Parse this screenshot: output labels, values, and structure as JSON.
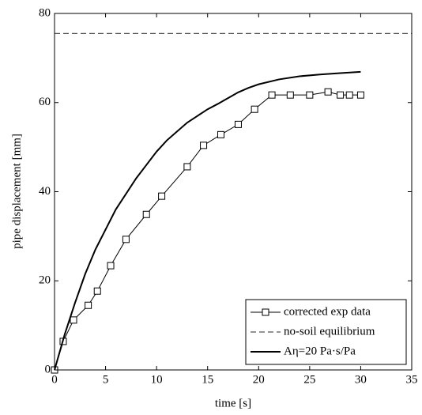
{
  "chart_data": {
    "type": "line",
    "xlabel": "time [s]",
    "ylabel": "pipe displacement [mm]",
    "xlim": [
      0,
      35
    ],
    "ylim": [
      0,
      80
    ],
    "xticks": [
      0,
      5,
      10,
      15,
      20,
      25,
      30,
      35
    ],
    "yticks": [
      0,
      20,
      40,
      60,
      80
    ],
    "legend": "lower right",
    "series": [
      {
        "name": "corrected exp data",
        "color": "#000000",
        "marker": "square",
        "dash": "solid",
        "width": 1,
        "x": [
          0,
          0.85,
          1.86,
          3.3,
          4.2,
          5.5,
          7.0,
          9.0,
          10.5,
          13.0,
          14.6,
          16.3,
          18.0,
          19.6,
          21.3,
          23.1,
          25.0,
          26.8,
          28.0,
          28.9,
          30.0
        ],
        "values": [
          0,
          6.4,
          11.2,
          14.5,
          17.7,
          23.4,
          29.3,
          34.9,
          39.0,
          45.6,
          50.4,
          52.8,
          55.1,
          58.5,
          61.7,
          61.7,
          61.7,
          62.4,
          61.7,
          61.7,
          61.7
        ]
      },
      {
        "name": "no-soil equilibrium",
        "color": "#555555",
        "marker": "none",
        "dash": "dashed",
        "width": 1.2,
        "x": [
          0,
          35
        ],
        "values": [
          75.5,
          75.5
        ]
      },
      {
        "name": "Aη=20 Pa·s/Pa",
        "color": "#000000",
        "marker": "none",
        "dash": "solid",
        "width": 2,
        "x": [
          0,
          1,
          2,
          3,
          4,
          5,
          6,
          7,
          8,
          9,
          10,
          11,
          12,
          13,
          14,
          15,
          16,
          17,
          18,
          19,
          20,
          22,
          24,
          26,
          28,
          30
        ],
        "values": [
          0,
          8,
          15,
          21.5,
          27,
          31.5,
          36,
          39.5,
          43,
          46,
          49,
          51.5,
          53.5,
          55.5,
          57,
          58.5,
          59.7,
          61,
          62.3,
          63.3,
          64.1,
          65.2,
          65.9,
          66.3,
          66.6,
          66.9
        ]
      }
    ]
  }
}
